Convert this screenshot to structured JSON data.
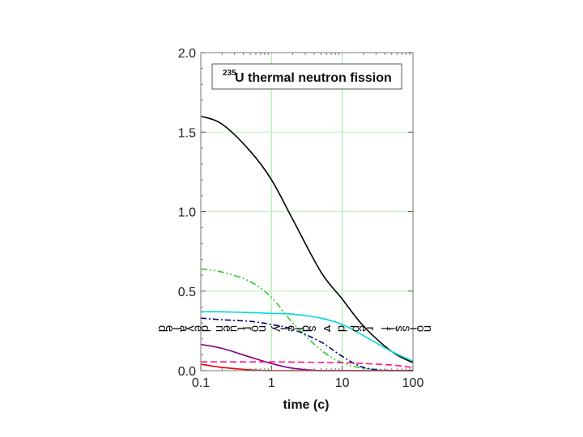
{
  "chart_data": {
    "type": "line",
    "legend": {
      "sup": "235",
      "text": "U thermal neutron fission",
      "placement": "top-right"
    },
    "xlabel": "time (c)",
    "ylabel": "delayed neutron yields v_d per fission",
    "x_scale": "log",
    "xlim": [
      0.1,
      100
    ],
    "ylim": [
      0.0,
      2.0
    ],
    "x_ticks": [
      "0.1",
      "1",
      "10",
      "100"
    ],
    "y_ticks": [
      "0.0",
      "0.5",
      "1.0",
      "1.5",
      "2.0"
    ],
    "grid": true,
    "series": [
      {
        "color": "#000000",
        "dash": "",
        "x": [
          0.1,
          0.2,
          0.5,
          1,
          2,
          5,
          10,
          20,
          50,
          100
        ],
        "y": [
          1.6,
          1.55,
          1.38,
          1.2,
          0.95,
          0.62,
          0.45,
          0.28,
          0.12,
          0.05
        ]
      },
      {
        "color": "#2ecc2e",
        "dash": "8 3 2 3 2 3",
        "x": [
          0.1,
          0.2,
          0.5,
          1,
          2,
          5,
          10,
          20,
          50,
          100
        ],
        "y": [
          0.64,
          0.62,
          0.56,
          0.46,
          0.3,
          0.13,
          0.05,
          0.015,
          0.0,
          0.0
        ]
      },
      {
        "color": "#00d8d8",
        "dash": "",
        "x": [
          0.1,
          0.2,
          0.5,
          1,
          2,
          5,
          10,
          20,
          50,
          100
        ],
        "y": [
          0.37,
          0.37,
          0.365,
          0.36,
          0.355,
          0.33,
          0.29,
          0.22,
          0.12,
          0.06
        ]
      },
      {
        "color": "#000080",
        "dash": "7 3 2 3",
        "x": [
          0.1,
          0.2,
          0.5,
          1,
          2,
          5,
          10,
          20,
          50,
          100
        ],
        "y": [
          0.33,
          0.32,
          0.31,
          0.29,
          0.26,
          0.18,
          0.09,
          0.02,
          0.0,
          0.0
        ]
      },
      {
        "color": "#800080",
        "dash": "",
        "x": [
          0.1,
          0.2,
          0.5,
          1,
          2,
          5,
          10,
          20,
          50,
          100
        ],
        "y": [
          0.165,
          0.14,
          0.085,
          0.045,
          0.015,
          0.0,
          0.0,
          0.0,
          0.0,
          0.0
        ]
      },
      {
        "color": "#ff1493",
        "dash": "8 4",
        "x": [
          0.1,
          0.2,
          0.5,
          1,
          2,
          5,
          10,
          20,
          50,
          100
        ],
        "y": [
          0.055,
          0.055,
          0.055,
          0.055,
          0.054,
          0.052,
          0.05,
          0.045,
          0.035,
          0.02
        ]
      },
      {
        "color": "#e00000",
        "dash": "",
        "x": [
          0.1,
          0.2,
          0.5,
          1,
          2,
          5,
          10,
          20,
          50,
          100
        ],
        "y": [
          0.04,
          0.02,
          0.005,
          0.0,
          0.0,
          0.0,
          0.0,
          0.0,
          0.0,
          0.0
        ]
      }
    ]
  }
}
